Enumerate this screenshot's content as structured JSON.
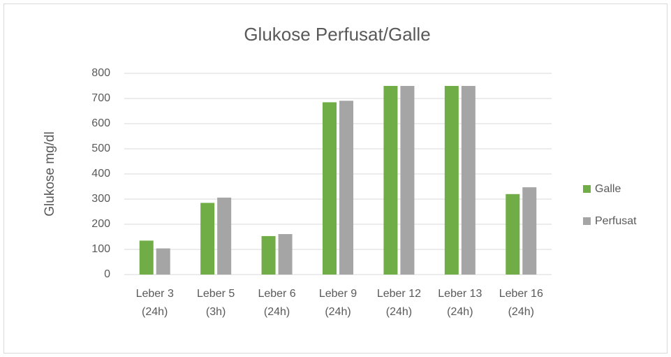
{
  "chart_data": {
    "type": "bar",
    "title": "Glukose Perfusat/Galle",
    "ylabel": "Glukose mg/dl",
    "categories": [
      "Leber 3 (24h)",
      "Leber 5 (3h)",
      "Leber 6 (24h)",
      "Leber 9 (24h)",
      "Leber 12 (24h)",
      "Leber 13 (24h)",
      "Leber 16 (24h)"
    ],
    "series": [
      {
        "name": "Galle",
        "color": "#70ad47",
        "values": [
          135,
          285,
          153,
          685,
          750,
          750,
          320
        ]
      },
      {
        "name": "Perfusat",
        "color": "#a5a5a5",
        "values": [
          104,
          306,
          161,
          691,
          750,
          750,
          347
        ]
      }
    ],
    "ylim": [
      0,
      800
    ],
    "yticks": [
      0,
      100,
      200,
      300,
      400,
      500,
      600,
      700,
      800
    ],
    "grid": true,
    "legend": "right"
  }
}
